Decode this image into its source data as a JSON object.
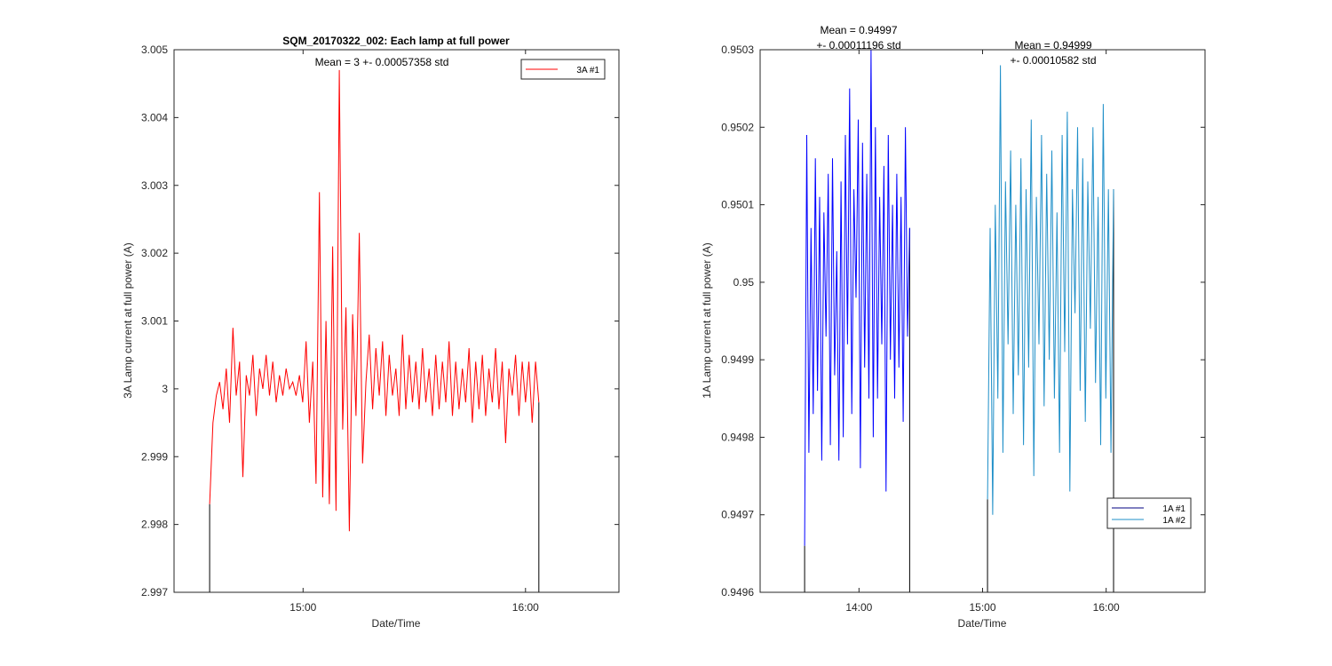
{
  "chart_data": [
    {
      "type": "line",
      "title": "SQM_20170322_002: Each lamp at full power",
      "xlabel": "Date/Time",
      "ylabel": "3A Lamp current at full power (A)",
      "xlim": [
        14.42,
        16.42
      ],
      "ylim": [
        2.997,
        3.005
      ],
      "x_ticks": [
        15.0,
        16.0
      ],
      "x_tick_labels": [
        "15:00",
        "16:00"
      ],
      "y_ticks": [
        2.997,
        2.998,
        2.999,
        3.0,
        3.001,
        3.002,
        3.003,
        3.004,
        3.005
      ],
      "y_tick_labels": [
        "2.997",
        "2.998",
        "2.999",
        "3",
        "3.001",
        "3.002",
        "3.003",
        "3.004",
        "3.005"
      ],
      "annotations": [
        "Mean = 3 +- 0.00057358 std"
      ],
      "legend": {
        "position": "top-right",
        "entries": [
          "3A #1"
        ]
      },
      "series": [
        {
          "name": "3A #1",
          "color": "#ff0000",
          "x_start": 14.58,
          "x_end": 16.06,
          "baseline_color": "#000000",
          "values": [
            2.9983,
            2.9995,
            2.9999,
            3.0001,
            2.9997,
            3.0003,
            2.9995,
            3.0009,
            2.9999,
            3.0004,
            2.9987,
            3.0002,
            2.9999,
            3.0005,
            2.9996,
            3.0003,
            3.0,
            3.0005,
            2.9999,
            3.0004,
            2.9998,
            3.0002,
            2.9999,
            3.0003,
            3.0,
            3.0001,
            2.9999,
            3.0002,
            2.9998,
            3.0007,
            2.9995,
            3.0004,
            2.9986,
            3.0029,
            2.9984,
            3.001,
            2.9983,
            3.0021,
            2.9982,
            3.0047,
            2.9994,
            3.0012,
            2.9979,
            3.0011,
            2.9996,
            3.0023,
            2.9989,
            3.0001,
            3.0008,
            2.9997,
            3.0006,
            2.9999,
            3.0007,
            2.9996,
            3.0005,
            2.9999,
            3.0003,
            2.9996,
            3.0008,
            2.9997,
            3.0005,
            2.9998,
            3.0004,
            2.9997,
            3.0006,
            2.9998,
            3.0003,
            2.9996,
            3.0005,
            2.9997,
            3.0004,
            2.9998,
            3.0007,
            2.9996,
            3.0004,
            2.9997,
            3.0003,
            2.9998,
            3.0006,
            2.9995,
            3.0004,
            2.9997,
            3.0005,
            2.9996,
            3.0003,
            2.9998,
            3.0006,
            2.9997,
            3.0004,
            2.9992,
            3.0003,
            2.9999,
            3.0005,
            2.9996,
            3.0004,
            2.9998,
            3.0004,
            2.9995,
            3.0004,
            2.9998
          ]
        }
      ]
    },
    {
      "type": "line",
      "title": "",
      "xlabel": "Date/Time",
      "ylabel": "1A Lamp current at full power (A)",
      "xlim": [
        13.2,
        16.8
      ],
      "ylim": [
        0.9496,
        0.9503
      ],
      "x_ticks": [
        14.0,
        15.0,
        16.0
      ],
      "x_tick_labels": [
        "14:00",
        "15:00",
        "16:00"
      ],
      "y_ticks": [
        0.9496,
        0.9497,
        0.9498,
        0.9499,
        0.95,
        0.9501,
        0.9502,
        0.9503
      ],
      "y_tick_labels": [
        "0.9496",
        "0.9497",
        "0.9498",
        "0.9499",
        "0.95",
        "0.9501",
        "0.9502",
        "0.9503"
      ],
      "annotations": [
        "Mean = 0.94997",
        "+- 0.00011196 std",
        "Mean = 0.94999",
        "+- 0.00010582 std"
      ],
      "legend": {
        "position": "bottom-right",
        "entries": [
          "1A #1",
          "1A #2"
        ]
      },
      "series": [
        {
          "name": "1A #1",
          "color": "#0000ff",
          "legend_color": "#000080",
          "baseline_color": "#000000",
          "x_start": 13.56,
          "x_end": 14.41,
          "values": [
            0.94966,
            0.95019,
            0.94978,
            0.95007,
            0.94983,
            0.95016,
            0.94986,
            0.95011,
            0.94977,
            0.95009,
            0.94993,
            0.95014,
            0.94979,
            0.95016,
            0.94988,
            0.95004,
            0.94977,
            0.95013,
            0.9498,
            0.95019,
            0.94992,
            0.95025,
            0.94983,
            0.95012,
            0.94998,
            0.95021,
            0.94976,
            0.95018,
            0.94989,
            0.95014,
            0.94985,
            0.9503,
            0.9498,
            0.9502,
            0.94985,
            0.95011,
            0.94992,
            0.95015,
            0.94973,
            0.95019,
            0.9499,
            0.9501,
            0.94985,
            0.95014,
            0.94989,
            0.95011,
            0.94982,
            0.9502,
            0.94993,
            0.95007
          ]
        },
        {
          "name": "1A #2",
          "color": "#1f8fc8",
          "legend_color": "#1f8fc8",
          "baseline_color": "#000000",
          "x_start": 15.04,
          "x_end": 16.06,
          "values": [
            0.94972,
            0.95007,
            0.9497,
            0.9501,
            0.94985,
            0.95028,
            0.94978,
            0.95013,
            0.94992,
            0.95017,
            0.94983,
            0.9501,
            0.94988,
            0.95016,
            0.94979,
            0.95012,
            0.94989,
            0.95021,
            0.94975,
            0.95011,
            0.94992,
            0.95019,
            0.94984,
            0.95014,
            0.9499,
            0.95017,
            0.94985,
            0.95009,
            0.94978,
            0.95019,
            0.94991,
            0.95022,
            0.94973,
            0.95012,
            0.94996,
            0.9502,
            0.94986,
            0.95016,
            0.94982,
            0.95013,
            0.94994,
            0.9502,
            0.94987,
            0.95011,
            0.94979,
            0.95023,
            0.94985,
            0.95012,
            0.94978,
            0.95012
          ]
        }
      ]
    }
  ]
}
